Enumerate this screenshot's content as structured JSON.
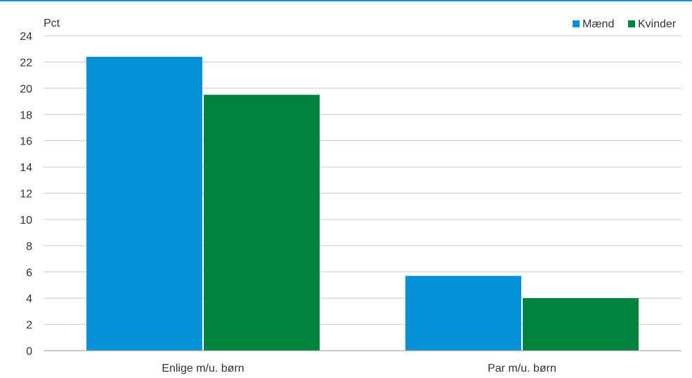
{
  "chart_data": {
    "type": "bar",
    "ylabel": "Pct",
    "categories": [
      "Enlige m/u. børn",
      "Par m/u. børn"
    ],
    "series": [
      {
        "name": "Mænd",
        "color": "#0091d6",
        "values": [
          22.4,
          5.7
        ]
      },
      {
        "name": "Kvinder",
        "color": "#00833d",
        "values": [
          19.5,
          4.0
        ]
      }
    ],
    "ylim": [
      0,
      24
    ],
    "yticks": [
      "0",
      "2",
      "4",
      "6",
      "8",
      "10",
      "12",
      "14",
      "16",
      "18",
      "20",
      "22",
      "24"
    ],
    "grid": true,
    "legend": "top-right",
    "accent_color": "#1f8fd0"
  }
}
